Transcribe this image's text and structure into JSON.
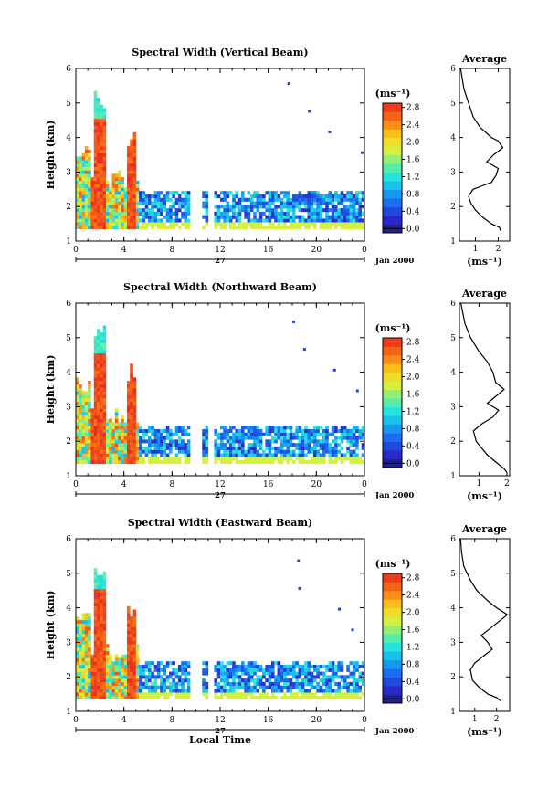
{
  "chart_data": [
    {
      "type": "heatmap",
      "title": "Spectral Width (Vertical Beam)",
      "ylabel": "Height (km)",
      "xlim": [
        0,
        24
      ],
      "ylim": [
        1,
        6
      ],
      "xticks": [
        "0",
        "4",
        "8",
        "12",
        "16",
        "20",
        "0"
      ],
      "yticks": [
        "1",
        "2",
        "3",
        "4",
        "5",
        "6"
      ],
      "day_label": "27",
      "date_label": "Jan 2000",
      "colorbar": {
        "unit_label": "(ms⁻¹)",
        "ticks": [
          "0.0",
          "0.4",
          "0.8",
          "1.2",
          "1.6",
          "2.0",
          "2.4",
          "2.8"
        ],
        "range": [
          0,
          3.0
        ]
      },
      "profile": {
        "title": "Average",
        "xlabel": "(ms⁻¹)",
        "xticks": [
          "1",
          "2"
        ],
        "xlim": [
          0.3,
          2.5
        ],
        "yticks": [
          "1",
          "2",
          "3",
          "4",
          "5",
          "6"
        ],
        "points": [
          [
            2.1,
            1.3
          ],
          [
            2.05,
            1.4
          ],
          [
            1.7,
            1.5
          ],
          [
            1.3,
            1.7
          ],
          [
            1.0,
            1.9
          ],
          [
            0.8,
            2.1
          ],
          [
            0.7,
            2.3
          ],
          [
            0.9,
            2.5
          ],
          [
            1.3,
            2.6
          ],
          [
            1.7,
            2.7
          ],
          [
            1.9,
            2.9
          ],
          [
            2.0,
            3.1
          ],
          [
            1.5,
            3.3
          ],
          [
            1.8,
            3.5
          ],
          [
            2.2,
            3.7
          ],
          [
            2.0,
            3.9
          ],
          [
            1.7,
            4.0
          ],
          [
            1.2,
            4.3
          ],
          [
            0.9,
            4.6
          ],
          [
            0.7,
            5.0
          ],
          [
            0.5,
            5.4
          ],
          [
            0.4,
            5.8
          ],
          [
            0.35,
            6.0
          ]
        ]
      }
    },
    {
      "type": "heatmap",
      "title": "Spectral Width (Northward Beam)",
      "ylabel": "Height (km)",
      "xlim": [
        0,
        24
      ],
      "ylim": [
        1,
        6
      ],
      "xticks": [
        "0",
        "4",
        "8",
        "12",
        "16",
        "20",
        "0"
      ],
      "yticks": [
        "1",
        "2",
        "3",
        "4",
        "5",
        "6"
      ],
      "day_label": "27",
      "date_label": "Jan 2000",
      "colorbar": {
        "unit_label": "(ms⁻¹)",
        "ticks": [
          "0.0",
          "0.4",
          "0.8",
          "1.2",
          "1.6",
          "2.0",
          "2.4",
          "2.8"
        ],
        "range": [
          0,
          3.0
        ]
      },
      "profile": {
        "title": "Average",
        "xlabel": "(ms⁻¹)",
        "xticks": [
          "1",
          "2"
        ],
        "xlim": [
          0.3,
          2.1
        ],
        "yticks": [
          "1",
          "2",
          "3",
          "4",
          "5",
          "6"
        ],
        "points": [
          [
            2.0,
            1.1
          ],
          [
            1.9,
            1.2
          ],
          [
            1.6,
            1.4
          ],
          [
            1.3,
            1.6
          ],
          [
            1.1,
            1.8
          ],
          [
            0.9,
            2.0
          ],
          [
            0.8,
            2.3
          ],
          [
            1.1,
            2.5
          ],
          [
            1.5,
            2.7
          ],
          [
            1.7,
            2.9
          ],
          [
            1.3,
            3.1
          ],
          [
            1.6,
            3.3
          ],
          [
            1.9,
            3.5
          ],
          [
            1.6,
            3.7
          ],
          [
            1.5,
            4.0
          ],
          [
            1.3,
            4.3
          ],
          [
            1.0,
            4.6
          ],
          [
            0.7,
            5.0
          ],
          [
            0.5,
            5.4
          ],
          [
            0.4,
            5.8
          ],
          [
            0.35,
            6.0
          ]
        ]
      }
    },
    {
      "type": "heatmap",
      "title": "Spectral Width (Eastward Beam)",
      "ylabel": "Height (km)",
      "xlabel": "Local Time",
      "xlim": [
        0,
        24
      ],
      "ylim": [
        1,
        6
      ],
      "xticks": [
        "0",
        "4",
        "8",
        "12",
        "16",
        "20",
        "0"
      ],
      "yticks": [
        "1",
        "2",
        "3",
        "4",
        "5",
        "6"
      ],
      "day_label": "27",
      "date_label": "Jan 2000",
      "colorbar": {
        "unit_label": "(ms⁻¹)",
        "ticks": [
          "0.0",
          "0.4",
          "0.8",
          "1.2",
          "1.6",
          "2.0",
          "2.4",
          "2.8"
        ],
        "range": [
          0,
          3.0
        ]
      },
      "profile": {
        "title": "Average",
        "xlabel": "(ms⁻¹)",
        "xticks": [
          "1",
          "2"
        ],
        "xlim": [
          0.3,
          2.6
        ],
        "yticks": [
          "1",
          "2",
          "3",
          "4",
          "5",
          "6"
        ],
        "points": [
          [
            2.2,
            1.3
          ],
          [
            2.0,
            1.4
          ],
          [
            1.6,
            1.5
          ],
          [
            1.2,
            1.7
          ],
          [
            0.9,
            1.9
          ],
          [
            0.8,
            2.2
          ],
          [
            1.0,
            2.4
          ],
          [
            1.4,
            2.6
          ],
          [
            1.8,
            2.8
          ],
          [
            1.6,
            3.0
          ],
          [
            1.3,
            3.2
          ],
          [
            1.7,
            3.4
          ],
          [
            2.1,
            3.6
          ],
          [
            2.5,
            3.8
          ],
          [
            2.0,
            4.0
          ],
          [
            1.6,
            4.2
          ],
          [
            1.1,
            4.5
          ],
          [
            0.8,
            4.8
          ],
          [
            0.5,
            5.2
          ],
          [
            0.4,
            5.6
          ],
          [
            0.35,
            6.0
          ]
        ]
      }
    }
  ]
}
